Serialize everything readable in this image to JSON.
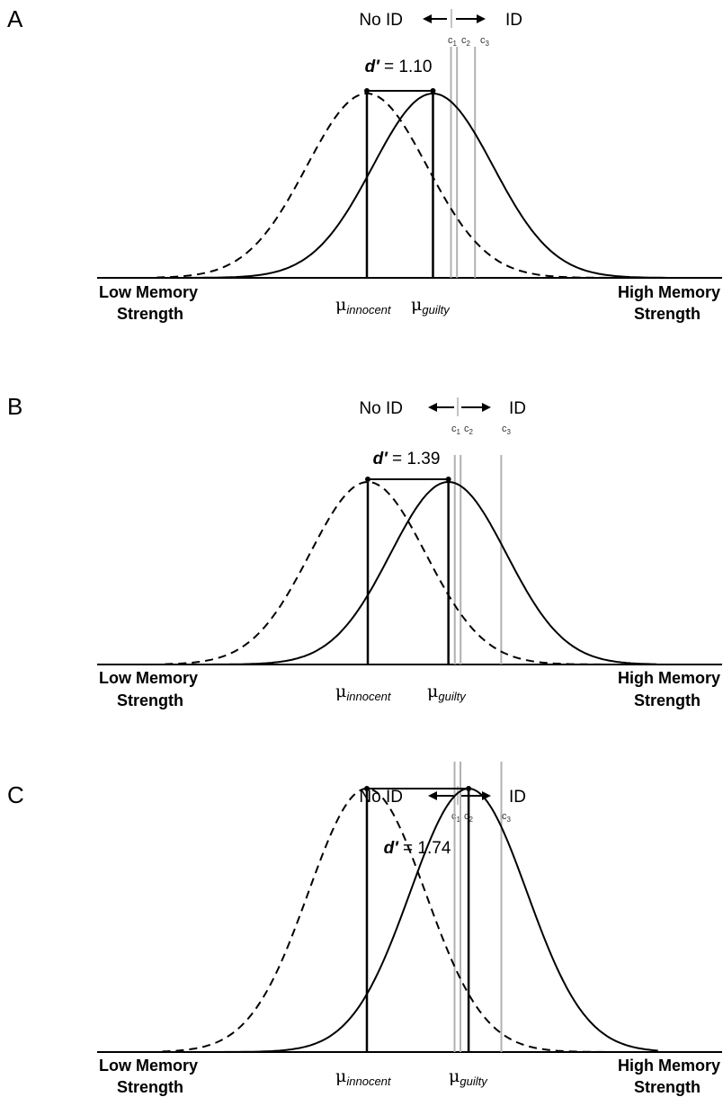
{
  "figure": {
    "direction": {
      "left_label": "No ID",
      "right_label": "ID"
    },
    "axis": {
      "left_line1": "Low Memory",
      "left_line2": "Strength",
      "right_line1": "High Memory",
      "right_line2": "Strength"
    },
    "mu": {
      "symbol": "μ",
      "innocent_sub": "innocent",
      "guilty_sub": "guilty"
    },
    "criterion_labels": [
      "c",
      "c",
      "c"
    ],
    "criterion_subscripts": [
      "1",
      "2",
      "3"
    ],
    "dprime_symbol": "d′",
    "dprime_equals": " = "
  },
  "panels": [
    {
      "label": "A",
      "dprime_text": "1.10"
    },
    {
      "label": "B",
      "dprime_text": "1.39"
    },
    {
      "label": "C",
      "dprime_text": "1.74"
    }
  ],
  "chart_data": [
    {
      "type": "line",
      "panel": "A",
      "distributions": [
        {
          "name": "innocent",
          "style": "dashed",
          "mean": 0,
          "sd": 1
        },
        {
          "name": "guilty",
          "style": "solid",
          "mean": 1.1,
          "sd": 1
        }
      ],
      "dprime": 1.1,
      "criteria": [
        1.4,
        1.5,
        1.8
      ],
      "x_range": [
        -3.5,
        5
      ],
      "line_color": "#000000",
      "criterion_color": "#b0b0b0"
    },
    {
      "type": "line",
      "panel": "B",
      "distributions": [
        {
          "name": "innocent",
          "style": "dashed",
          "mean": 0,
          "sd": 1
        },
        {
          "name": "guilty",
          "style": "solid",
          "mean": 1.39,
          "sd": 1
        }
      ],
      "dprime": 1.39,
      "criteria": [
        1.5,
        1.6,
        2.3
      ],
      "x_range": [
        -3.5,
        5
      ],
      "line_color": "#000000",
      "criterion_color": "#b0b0b0"
    },
    {
      "type": "line",
      "panel": "C",
      "distributions": [
        {
          "name": "innocent",
          "style": "dashed",
          "mean": 0,
          "sd": 1
        },
        {
          "name": "guilty",
          "style": "solid",
          "mean": 1.74,
          "sd": 1
        }
      ],
      "dprime": 1.74,
      "criteria": [
        1.5,
        1.6,
        2.3
      ],
      "x_range": [
        -3.5,
        5
      ],
      "line_color": "#000000",
      "criterion_color": "#b0b0b0"
    }
  ]
}
